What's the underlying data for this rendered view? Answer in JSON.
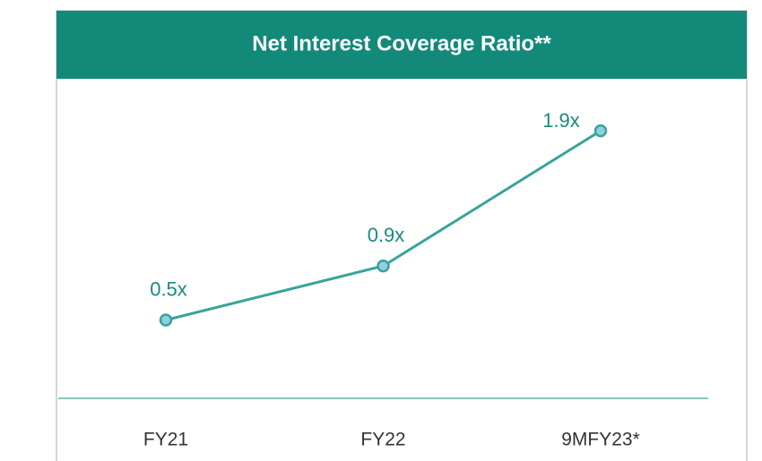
{
  "chart_data": {
    "type": "line",
    "title": "Net Interest Coverage Ratio**",
    "categories": [
      "FY21",
      "FY22",
      "9MFY23*"
    ],
    "values": [
      0.5,
      0.9,
      1.9
    ],
    "value_labels": [
      "0.5x",
      "0.9x",
      "1.9x"
    ],
    "color": "#3aa39a"
  }
}
